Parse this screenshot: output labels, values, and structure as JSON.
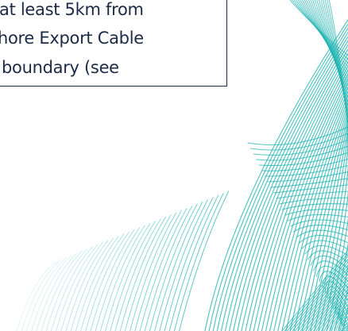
{
  "callout": {
    "lines": [
      "at least 5km from",
      "hore Export Cable",
      "boundary (see"
    ]
  },
  "colors": {
    "text": "#1b2a45",
    "border": "#1b2a45",
    "pattern": "#1fb3b0",
    "background": "#ffffff"
  },
  "decoration": {
    "name": "teal-line-pattern"
  }
}
